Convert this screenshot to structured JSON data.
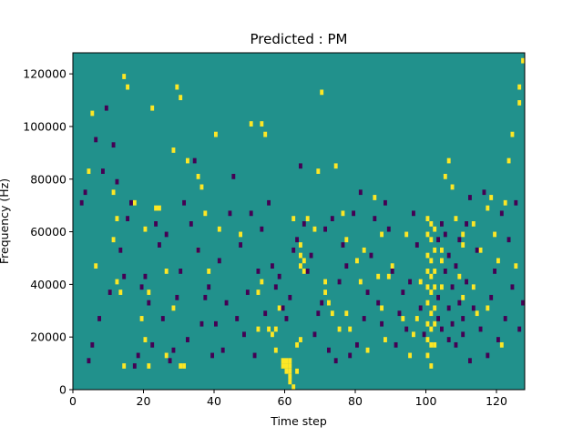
{
  "chart_data": {
    "type": "heatmap",
    "title": "Predicted : PM",
    "xlabel": "Time step",
    "ylabel": "Frequency (Hz)",
    "xlim": [
      0,
      128
    ],
    "ylim": [
      0,
      128000
    ],
    "grid": false,
    "xticks": [
      0,
      20,
      40,
      60,
      80,
      100,
      120
    ],
    "yticks": [
      0,
      20000,
      40000,
      60000,
      80000,
      100000,
      120000
    ],
    "xtick_labels": [
      "0",
      "20",
      "40",
      "60",
      "80",
      "100",
      "120"
    ],
    "ytick_labels": [
      "0",
      "20000",
      "40000",
      "60000",
      "80000",
      "100000",
      "120000"
    ],
    "colormap": "viridis",
    "colors": {
      "background": "#21918c",
      "high": "#fde725",
      "low": "#440154"
    },
    "cell_size": {
      "time_steps": 1,
      "frequency_hz": 2000
    },
    "high_cells": [
      [
        4,
        83000
      ],
      [
        5,
        105000
      ],
      [
        6,
        47000
      ],
      [
        11,
        57000
      ],
      [
        11,
        75000
      ],
      [
        12,
        41000
      ],
      [
        12,
        65000
      ],
      [
        13,
        37000
      ],
      [
        14,
        9000
      ],
      [
        14,
        119000
      ],
      [
        15,
        115000
      ],
      [
        17,
        71000
      ],
      [
        19,
        27000
      ],
      [
        20,
        19000
      ],
      [
        20,
        61000
      ],
      [
        21,
        37000
      ],
      [
        21,
        9000
      ],
      [
        22,
        107000
      ],
      [
        23,
        69000
      ],
      [
        24,
        69000
      ],
      [
        26,
        45000
      ],
      [
        26,
        13000
      ],
      [
        28,
        31000
      ],
      [
        28,
        91000
      ],
      [
        29,
        115000
      ],
      [
        30,
        111000
      ],
      [
        30,
        9000
      ],
      [
        31,
        9000
      ],
      [
        32,
        87000
      ],
      [
        35,
        81000
      ],
      [
        35,
        53000
      ],
      [
        36,
        77000
      ],
      [
        37,
        67000
      ],
      [
        38,
        45000
      ],
      [
        40,
        97000
      ],
      [
        41,
        61000
      ],
      [
        47,
        59000
      ],
      [
        50,
        101000
      ],
      [
        52,
        23000
      ],
      [
        52,
        37000
      ],
      [
        53,
        41000
      ],
      [
        53,
        101000
      ],
      [
        54,
        97000
      ],
      [
        55,
        23000
      ],
      [
        56,
        21000
      ],
      [
        57,
        23000
      ],
      [
        57,
        15000
      ],
      [
        58,
        31000
      ],
      [
        59,
        11000
      ],
      [
        59,
        9000
      ],
      [
        60,
        7000
      ],
      [
        60,
        9000
      ],
      [
        60,
        11000
      ],
      [
        61,
        3000
      ],
      [
        61,
        5000
      ],
      [
        61,
        7000
      ],
      [
        61,
        9000
      ],
      [
        61,
        11000
      ],
      [
        62,
        65000
      ],
      [
        62,
        1000
      ],
      [
        63,
        7000
      ],
      [
        63,
        17000
      ],
      [
        64,
        55000
      ],
      [
        64,
        51000
      ],
      [
        64,
        47000
      ],
      [
        64,
        19000
      ],
      [
        65,
        49000
      ],
      [
        65,
        45000
      ],
      [
        66,
        65000
      ],
      [
        68,
        61000
      ],
      [
        69,
        83000
      ],
      [
        70,
        113000
      ],
      [
        71,
        37000
      ],
      [
        71,
        41000
      ],
      [
        72,
        33000
      ],
      [
        73,
        29000
      ],
      [
        74,
        85000
      ],
      [
        75,
        23000
      ],
      [
        76,
        67000
      ],
      [
        77,
        57000
      ],
      [
        77,
        29000
      ],
      [
        78,
        23000
      ],
      [
        80,
        49000
      ],
      [
        81,
        41000
      ],
      [
        82,
        53000
      ],
      [
        83,
        15000
      ],
      [
        85,
        73000
      ],
      [
        86,
        43000
      ],
      [
        87,
        59000
      ],
      [
        87,
        31000
      ],
      [
        88,
        19000
      ],
      [
        89,
        43000
      ],
      [
        90,
        47000
      ],
      [
        93,
        27000
      ],
      [
        94,
        59000
      ],
      [
        95,
        13000
      ],
      [
        96,
        21000
      ],
      [
        97,
        27000
      ],
      [
        98,
        41000
      ],
      [
        100,
        65000
      ],
      [
        100,
        59000
      ],
      [
        100,
        51000
      ],
      [
        100,
        45000
      ],
      [
        100,
        39000
      ],
      [
        100,
        33000
      ],
      [
        100,
        25000
      ],
      [
        100,
        19000
      ],
      [
        100,
        13000
      ],
      [
        101,
        63000
      ],
      [
        101,
        57000
      ],
      [
        101,
        49000
      ],
      [
        101,
        43000
      ],
      [
        101,
        37000
      ],
      [
        101,
        29000
      ],
      [
        101,
        23000
      ],
      [
        101,
        17000
      ],
      [
        101,
        9000
      ],
      [
        102,
        61000
      ],
      [
        102,
        53000
      ],
      [
        102,
        45000
      ],
      [
        102,
        39000
      ],
      [
        102,
        31000
      ],
      [
        102,
        25000
      ],
      [
        102,
        17000
      ],
      [
        104,
        53000
      ],
      [
        104,
        49000
      ],
      [
        104,
        39000
      ],
      [
        105,
        81000
      ],
      [
        106,
        87000
      ],
      [
        107,
        77000
      ],
      [
        108,
        65000
      ],
      [
        109,
        43000
      ],
      [
        110,
        59000
      ],
      [
        110,
        55000
      ],
      [
        110,
        35000
      ],
      [
        113,
        39000
      ],
      [
        113,
        63000
      ],
      [
        114,
        29000
      ],
      [
        115,
        53000
      ],
      [
        117,
        31000
      ],
      [
        117,
        69000
      ],
      [
        118,
        73000
      ],
      [
        119,
        59000
      ],
      [
        120,
        49000
      ],
      [
        121,
        17000
      ],
      [
        122,
        71000
      ],
      [
        123,
        87000
      ],
      [
        124,
        97000
      ],
      [
        125,
        47000
      ],
      [
        126,
        109000
      ],
      [
        126,
        115000
      ],
      [
        127,
        125000
      ]
    ],
    "low_cells": [
      [
        2,
        71000
      ],
      [
        3,
        75000
      ],
      [
        4,
        11000
      ],
      [
        5,
        17000
      ],
      [
        6,
        95000
      ],
      [
        7,
        27000
      ],
      [
        8,
        83000
      ],
      [
        9,
        107000
      ],
      [
        10,
        37000
      ],
      [
        11,
        93000
      ],
      [
        12,
        79000
      ],
      [
        13,
        53000
      ],
      [
        14,
        43000
      ],
      [
        15,
        65000
      ],
      [
        16,
        71000
      ],
      [
        17,
        9000
      ],
      [
        18,
        13000
      ],
      [
        19,
        39000
      ],
      [
        20,
        43000
      ],
      [
        21,
        33000
      ],
      [
        22,
        17000
      ],
      [
        23,
        63000
      ],
      [
        24,
        55000
      ],
      [
        25,
        27000
      ],
      [
        26,
        59000
      ],
      [
        27,
        11000
      ],
      [
        28,
        15000
      ],
      [
        29,
        35000
      ],
      [
        30,
        45000
      ],
      [
        31,
        71000
      ],
      [
        32,
        19000
      ],
      [
        33,
        63000
      ],
      [
        34,
        87000
      ],
      [
        35,
        53000
      ],
      [
        36,
        25000
      ],
      [
        37,
        35000
      ],
      [
        38,
        39000
      ],
      [
        39,
        13000
      ],
      [
        40,
        25000
      ],
      [
        41,
        49000
      ],
      [
        42,
        15000
      ],
      [
        43,
        33000
      ],
      [
        44,
        67000
      ],
      [
        45,
        81000
      ],
      [
        46,
        27000
      ],
      [
        47,
        55000
      ],
      [
        48,
        21000
      ],
      [
        49,
        37000
      ],
      [
        50,
        67000
      ],
      [
        51,
        13000
      ],
      [
        52,
        45000
      ],
      [
        53,
        61000
      ],
      [
        54,
        29000
      ],
      [
        55,
        71000
      ],
      [
        56,
        47000
      ],
      [
        57,
        39000
      ],
      [
        58,
        43000
      ],
      [
        59,
        31000
      ],
      [
        60,
        27000
      ],
      [
        61,
        35000
      ],
      [
        62,
        53000
      ],
      [
        63,
        57000
      ],
      [
        64,
        85000
      ],
      [
        65,
        63000
      ],
      [
        66,
        45000
      ],
      [
        67,
        51000
      ],
      [
        68,
        21000
      ],
      [
        69,
        29000
      ],
      [
        70,
        33000
      ],
      [
        71,
        61000
      ],
      [
        72,
        15000
      ],
      [
        73,
        65000
      ],
      [
        74,
        11000
      ],
      [
        75,
        41000
      ],
      [
        76,
        55000
      ],
      [
        77,
        47000
      ],
      [
        78,
        13000
      ],
      [
        79,
        67000
      ],
      [
        80,
        17000
      ],
      [
        81,
        75000
      ],
      [
        82,
        27000
      ],
      [
        83,
        37000
      ],
      [
        84,
        51000
      ],
      [
        85,
        65000
      ],
      [
        86,
        33000
      ],
      [
        87,
        25000
      ],
      [
        88,
        71000
      ],
      [
        89,
        61000
      ],
      [
        90,
        45000
      ],
      [
        91,
        17000
      ],
      [
        92,
        29000
      ],
      [
        93,
        37000
      ],
      [
        94,
        23000
      ],
      [
        95,
        41000
      ],
      [
        96,
        67000
      ],
      [
        97,
        55000
      ],
      [
        98,
        31000
      ],
      [
        99,
        21000
      ],
      [
        103,
        57000
      ],
      [
        103,
        27000
      ],
      [
        103,
        35000
      ],
      [
        104,
        23000
      ],
      [
        104,
        63000
      ],
      [
        105,
        45000
      ],
      [
        105,
        59000
      ],
      [
        106,
        19000
      ],
      [
        106,
        31000
      ],
      [
        106,
        51000
      ],
      [
        107,
        25000
      ],
      [
        107,
        39000
      ],
      [
        108,
        17000
      ],
      [
        108,
        47000
      ],
      [
        109,
        33000
      ],
      [
        109,
        57000
      ],
      [
        110,
        21000
      ],
      [
        110,
        27000
      ],
      [
        111,
        41000
      ],
      [
        111,
        63000
      ],
      [
        112,
        11000
      ],
      [
        112,
        73000
      ],
      [
        113,
        31000
      ],
      [
        114,
        53000
      ],
      [
        115,
        23000
      ],
      [
        116,
        75000
      ],
      [
        117,
        13000
      ],
      [
        118,
        35000
      ],
      [
        119,
        45000
      ],
      [
        120,
        19000
      ],
      [
        121,
        67000
      ],
      [
        122,
        27000
      ],
      [
        123,
        57000
      ],
      [
        124,
        39000
      ],
      [
        125,
        71000
      ],
      [
        126,
        23000
      ],
      [
        127,
        33000
      ]
    ]
  }
}
